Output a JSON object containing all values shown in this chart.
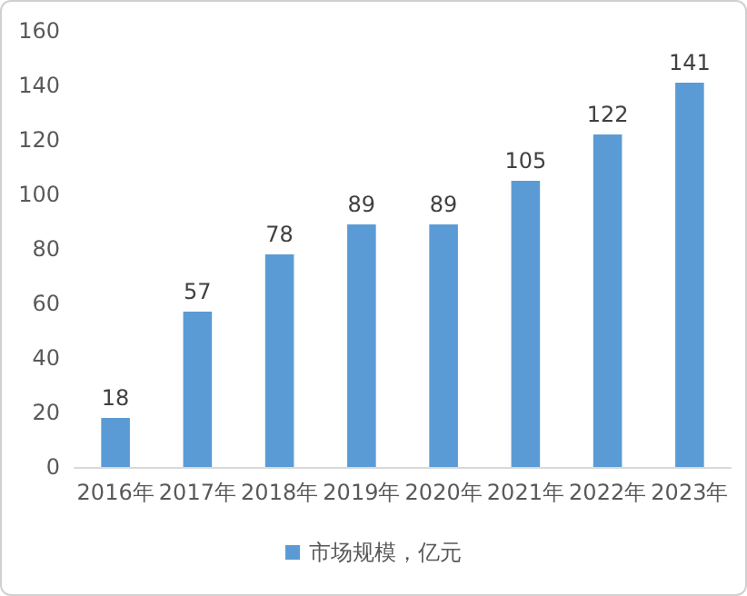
{
  "chart_data": {
    "type": "bar",
    "categories": [
      "2016年",
      "2017年",
      "2018年",
      "2019年",
      "2020年",
      "2021年",
      "2022年",
      "2023年"
    ],
    "series": [
      {
        "name": "市场规模，亿元",
        "color": "#5b9bd5",
        "values": [
          18,
          57,
          78,
          89,
          89,
          105,
          122,
          141
        ]
      }
    ],
    "ylim": [
      0,
      160
    ],
    "yticks": [
      0,
      20,
      40,
      60,
      80,
      100,
      120,
      140,
      160
    ],
    "grid": false,
    "data_labels": true,
    "legend": "bottom"
  }
}
